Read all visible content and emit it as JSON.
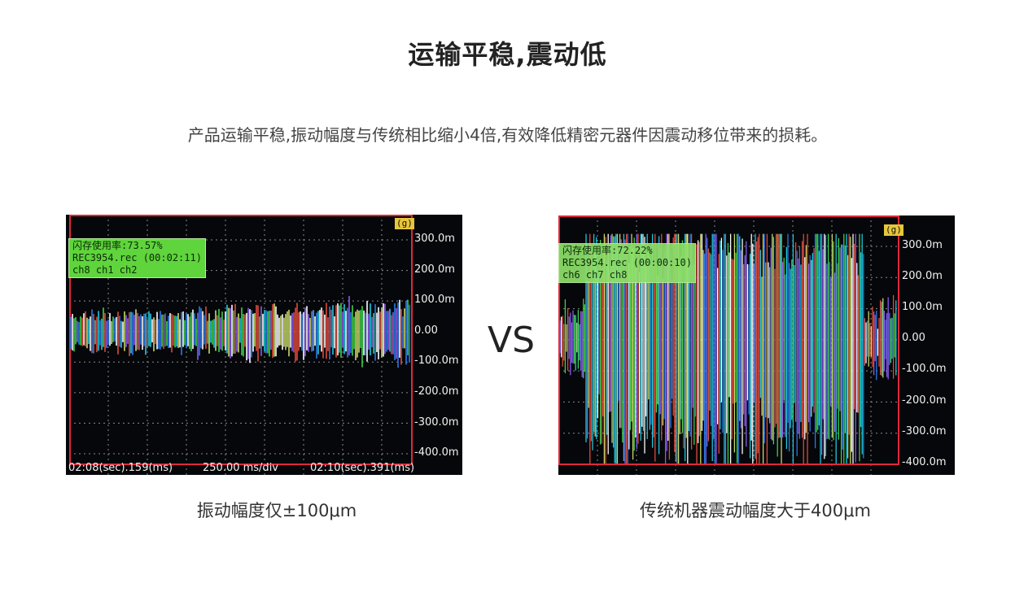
{
  "title": "运输平稳,震动低",
  "subtitle": "产品运输平稳,振动幅度与传统相比缩小4倍,有效降低精密元器件因震动移位带来的损耗。",
  "vs_label": "VS",
  "colors": {
    "scope_bg": "#06070a",
    "grid": "#8a8a8a",
    "border": "#e0283a",
    "info_bg": "#5fd43c",
    "unit_bg": "#e7c63a",
    "trace_palette": [
      "#ffffff",
      "#3fd14a",
      "#1ec8e0",
      "#c8d86a",
      "#e14a3a",
      "#8a5cf0",
      "#2a7be8"
    ]
  },
  "chart_data": [
    {
      "type": "line",
      "unit_label": "(g)",
      "info_lines": [
        "闪存使用率:73.57%",
        "REC3954.rec (00:02:11)",
        "ch8 ch1 ch2"
      ],
      "series_names": [
        "ch8",
        "ch1",
        "ch2"
      ],
      "y_ticks": [
        "300.0m",
        "200.0m",
        "100.0m",
        "0.00",
        "-100.0m",
        "-200.0m",
        "-300.0m",
        "-400.0m"
      ],
      "ylim": [
        -400,
        300
      ],
      "y_units": "mg",
      "amplitude": 100,
      "footer": [
        "02:08(sec).159(ms)",
        "250.00 ms/div",
        "02:10(sec).391(ms)"
      ],
      "caption": "振动幅度仅±100μm"
    },
    {
      "type": "line",
      "unit_label": "(g)",
      "info_lines": [
        "闪存使用率:72.22%",
        "REC3954.rec (00:00:10)",
        "ch6 ch7 ch8"
      ],
      "series_names": [
        "ch6",
        "ch7",
        "ch8"
      ],
      "y_ticks": [
        "300.0m",
        "200.0m",
        "100.0m",
        "0.00",
        "-100.0m",
        "-200.0m",
        "-300.0m",
        "-400.0m"
      ],
      "ylim": [
        -400,
        300
      ],
      "y_units": "mg",
      "amplitude": 400,
      "footer": [],
      "caption": "传统机器震动幅度大于400μm"
    }
  ]
}
